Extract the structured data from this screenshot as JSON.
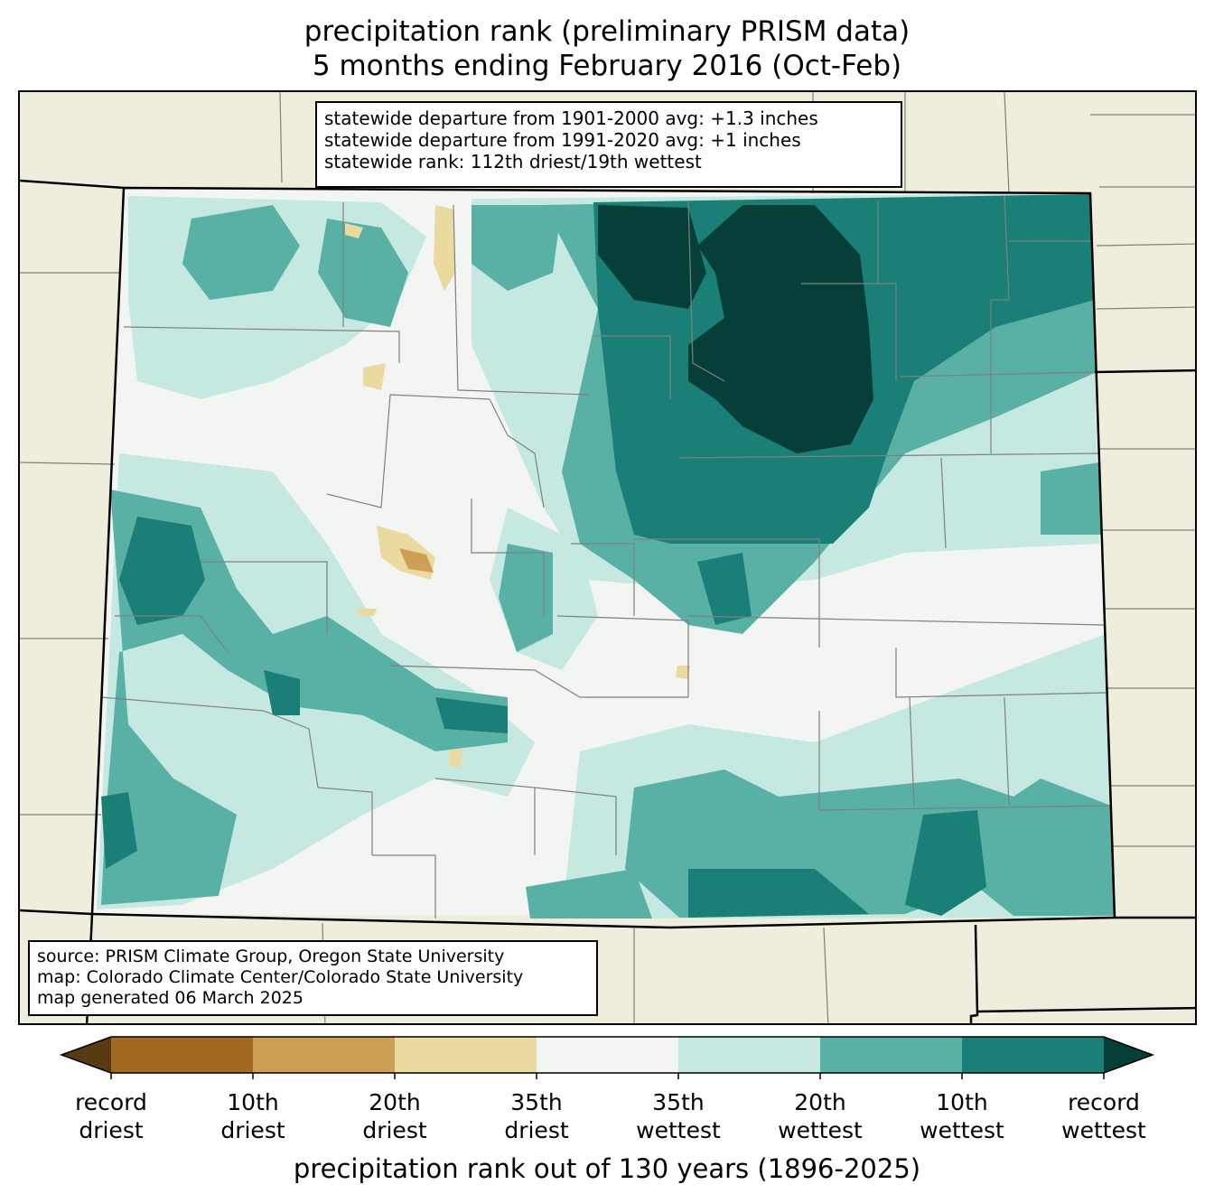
{
  "title": {
    "line1": "precipitation rank (preliminary PRISM data)",
    "line2": "5 months ending February 2016 (Oct-Feb)"
  },
  "stats": {
    "line1": "statewide departure from 1901-2000 avg: +1.3 inches",
    "line2": "statewide departure from 1991-2020 avg: +1 inches",
    "line3": "statewide rank: 112th driest/19th wettest"
  },
  "source": {
    "line1": "source: PRISM Climate Group, Oregon State University",
    "line2": "map: Colorado Climate Center/Colorado State University",
    "line3": "map generated 06 March 2025"
  },
  "colorbar": {
    "label": "precipitation rank out of 130 years (1896-2025)",
    "colors": [
      "#5a3a12",
      "#a16a1e",
      "#cea055",
      "#eada9f",
      "#f3f5f3",
      "#c5e8e1",
      "#59b0a5",
      "#1a7f76",
      "#063f37"
    ],
    "ticks": [
      {
        "line1": "record",
        "line2": "driest"
      },
      {
        "line1": "10th",
        "line2": "driest"
      },
      {
        "line1": "20th",
        "line2": "driest"
      },
      {
        "line1": "35th",
        "line2": "driest"
      },
      {
        "line1": "35th",
        "line2": "wettest"
      },
      {
        "line1": "20th",
        "line2": "wettest"
      },
      {
        "line1": "10th",
        "line2": "wettest"
      },
      {
        "line1": "record",
        "line2": "wettest"
      }
    ]
  },
  "map_colors": {
    "background": "#efeddb",
    "near_normal": "#f3f5f3",
    "wet35": "#c5e8e1",
    "wet20": "#59b0a5",
    "wet10": "#1a7f76",
    "record_wet": "#063f37",
    "dry35": "#eada9f",
    "dry20": "#cea055",
    "boundary": "#000000",
    "county": "#808080"
  }
}
